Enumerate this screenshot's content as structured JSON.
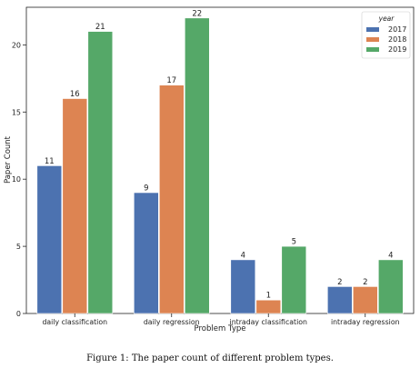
{
  "chart_data": {
    "type": "bar",
    "categories": [
      "daily classification",
      "daily regression",
      "intraday classification",
      "intraday regression"
    ],
    "series": [
      {
        "name": "2017",
        "values": [
          11,
          9,
          4,
          2
        ],
        "color": "#4c72b0"
      },
      {
        "name": "2018",
        "values": [
          16,
          17,
          1,
          2
        ],
        "color": "#dd8452"
      },
      {
        "name": "2019",
        "values": [
          21,
          22,
          5,
          4
        ],
        "color": "#55a868"
      }
    ],
    "xlabel": "Problem Type",
    "ylabel": "Paper Count",
    "ylim": [
      0,
      22.8
    ],
    "yticks": [
      0,
      5,
      10,
      15,
      20
    ],
    "legend": {
      "title": "year",
      "placement": "top-right"
    },
    "grid": false
  },
  "caption": "Figure 1: The paper count of different problem types."
}
